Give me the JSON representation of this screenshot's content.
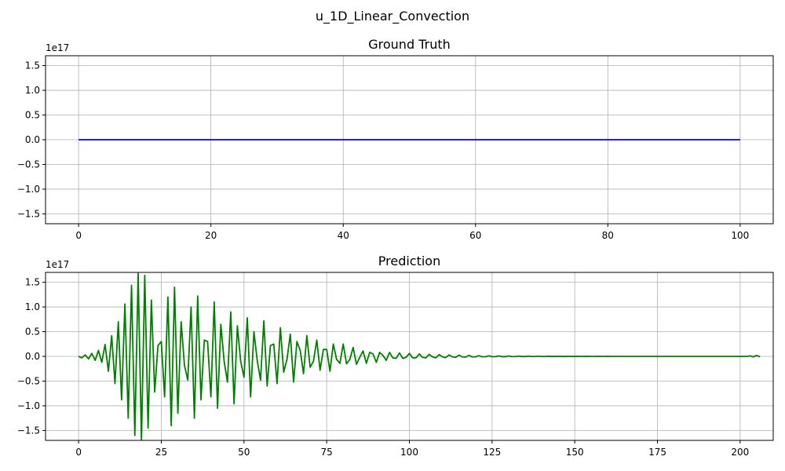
{
  "figure": {
    "suptitle": "u_1D_Linear_Convection"
  },
  "chart_data": [
    {
      "type": "line",
      "title": "Ground Truth",
      "xlabel": "",
      "ylabel": "",
      "y_offset_label": "1e17",
      "xlim": [
        -5,
        105
      ],
      "ylim": [
        -1.7,
        1.7
      ],
      "xticks": [
        0,
        20,
        40,
        60,
        80,
        100
      ],
      "xtick_labels": [
        "0",
        "20",
        "40",
        "60",
        "80",
        "100"
      ],
      "yticks": [
        -1.5,
        -1.0,
        -0.5,
        0.0,
        0.5,
        1.0,
        1.5
      ],
      "ytick_labels": [
        "−1.5",
        "−1.0",
        "−0.5",
        "0.0",
        "0.5",
        "1.0",
        "1.5"
      ],
      "grid": true,
      "series": [
        {
          "color": "#0000ff",
          "x": [
            0,
            100
          ],
          "y": [
            0,
            0
          ]
        }
      ]
    },
    {
      "type": "line",
      "title": "Prediction",
      "xlabel": "",
      "ylabel": "",
      "y_offset_label": "1e17",
      "xlim": [
        -10,
        210
      ],
      "ylim": [
        -1.7,
        1.7
      ],
      "xticks": [
        0,
        25,
        50,
        75,
        100,
        125,
        150,
        175,
        200
      ],
      "xtick_labels": [
        "0",
        "25",
        "50",
        "75",
        "100",
        "125",
        "150",
        "175",
        "200"
      ],
      "yticks": [
        -1.5,
        -1.0,
        -0.5,
        0.0,
        0.5,
        1.0,
        1.5
      ],
      "ytick_labels": [
        "−1.5",
        "−1.0",
        "−0.5",
        "0.0",
        "0.5",
        "1.0",
        "1.5"
      ],
      "grid": true,
      "series": [
        {
          "color": "#008000",
          "y": [
            0.0,
            -0.03,
            0.03,
            -0.05,
            0.06,
            -0.08,
            0.12,
            -0.12,
            0.24,
            -0.3,
            0.42,
            -0.55,
            0.7,
            -0.88,
            1.06,
            -1.25,
            1.44,
            -1.6,
            1.68,
            -1.7,
            1.64,
            -1.45,
            1.14,
            -0.72,
            0.22,
            0.3,
            -0.82,
            1.2,
            -1.4,
            1.4,
            -1.15,
            0.7,
            -0.18,
            -0.48,
            1.0,
            -1.25,
            1.22,
            -0.88,
            0.33,
            0.3,
            -0.82,
            1.1,
            -1.05,
            0.65,
            -0.1,
            -0.52,
            0.9,
            -0.96,
            0.62,
            -0.1,
            -0.42,
            0.78,
            -0.82,
            0.5,
            -0.08,
            -0.48,
            0.72,
            -0.6,
            0.22,
            0.25,
            -0.55,
            0.58,
            -0.32,
            -0.06,
            0.45,
            -0.52,
            0.3,
            0.12,
            -0.35,
            0.42,
            -0.22,
            -0.1,
            0.33,
            -0.28,
            0.14,
            0.14,
            -0.3,
            0.25,
            -0.06,
            -0.14,
            0.25,
            -0.15,
            -0.06,
            0.18,
            -0.16,
            -0.02,
            0.11,
            -0.14,
            0.08,
            0.05,
            -0.12,
            0.08,
            0.02,
            -0.08,
            0.08,
            -0.03,
            -0.04,
            0.07,
            -0.04,
            -0.02,
            0.06,
            -0.03,
            -0.03,
            0.05,
            -0.02,
            -0.03,
            0.04,
            -0.01,
            -0.03,
            0.035,
            -0.01,
            -0.025,
            0.03,
            -0.01,
            -0.02,
            0.025,
            -0.01,
            -0.015,
            0.02,
            -0.01,
            -0.01,
            0.015,
            -0.008,
            -0.008,
            0.012,
            -0.006,
            -0.006,
            0.01,
            -0.005,
            -0.005,
            0.008,
            -0.004,
            -0.004,
            0.006,
            -0.003,
            -0.003,
            0.005,
            -0.002,
            -0.002,
            0.004,
            -0.002,
            -0.002,
            0.003,
            -0.001,
            -0.001,
            0.002,
            -0.001,
            -0.001,
            0.002,
            -0.001,
            -0.001,
            0.001,
            0.0,
            -0.001,
            0.001,
            0.0,
            0.0,
            0.001,
            0.0,
            0.0,
            0.001,
            0.0,
            0.0,
            0.0,
            0.0,
            0.0,
            0.0,
            0.0,
            0.0,
            0.0,
            0.0,
            0.0,
            0.0,
            0.0,
            0.0,
            0.0,
            0.0,
            0.0,
            0.0,
            0.0,
            0.0,
            0.0,
            0.0,
            0.0,
            0.0,
            0.0,
            0.0,
            0.0,
            0.0,
            0.0,
            0.0,
            0.0,
            0.0,
            0.0,
            0.0,
            0.0,
            0.0,
            0.0,
            0.0,
            0.0,
            0.0,
            0.0,
            0.0,
            0.01,
            -0.01,
            0.02,
            -0.01
          ]
        }
      ]
    }
  ]
}
